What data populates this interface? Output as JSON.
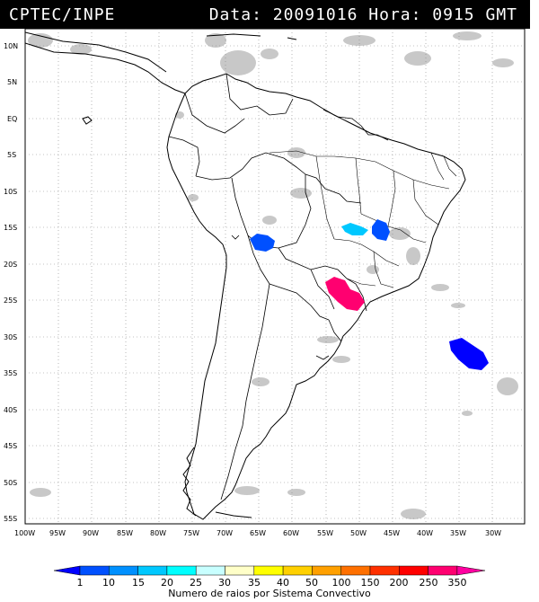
{
  "header": {
    "source": "CPTEC/INPE",
    "datetime": "Data: 20091016 Hora: 0915 GMT"
  },
  "map": {
    "lat_labels": [
      "10N",
      "5N",
      "EQ",
      "5S",
      "10S",
      "15S",
      "20S",
      "25S",
      "30S",
      "35S",
      "40S",
      "45S",
      "50S",
      "55S"
    ],
    "lon_labels": [
      "100W",
      "95W",
      "90W",
      "85W",
      "80W",
      "75W",
      "70W",
      "65W",
      "60W",
      "55W",
      "50W",
      "45W",
      "40W",
      "35W",
      "30W"
    ],
    "grid": "dotted",
    "land_color": "#ffffff",
    "cloud_color": "#c8c8c8"
  },
  "legend": {
    "title": "Numero de raios por Sistema Convectivo",
    "labels": [
      "1",
      "10",
      "15",
      "20",
      "25",
      "30",
      "35",
      "40",
      "50",
      "100",
      "150",
      "200",
      "250",
      "350"
    ],
    "colors": [
      "#0000ff",
      "#0050ff",
      "#0090ff",
      "#00c8ff",
      "#00ffff",
      "#c8ffff",
      "#ffffc8",
      "#ffff00",
      "#ffd000",
      "#ffa000",
      "#ff7000",
      "#ff3000",
      "#ff0000",
      "#ff0070",
      "#ff00a0"
    ]
  },
  "storms": [
    {
      "name": "bolivia-cell",
      "lat_lon": [
        -17.2,
        -63.5
      ],
      "count": "10"
    },
    {
      "name": "goias-cell-cyan",
      "lat_lon": [
        -15.2,
        -51.0
      ],
      "count": "25"
    },
    {
      "name": "goias-cell-blue",
      "lat_lon": [
        -15.5,
        -46.5
      ],
      "count": "10"
    },
    {
      "name": "paraguay-cell",
      "lat_lon": [
        -23.5,
        -52.3
      ],
      "count": "350"
    },
    {
      "name": "ocean-cell",
      "lat_lon": [
        -33.0,
        -33.5
      ],
      "count": "10"
    }
  ]
}
